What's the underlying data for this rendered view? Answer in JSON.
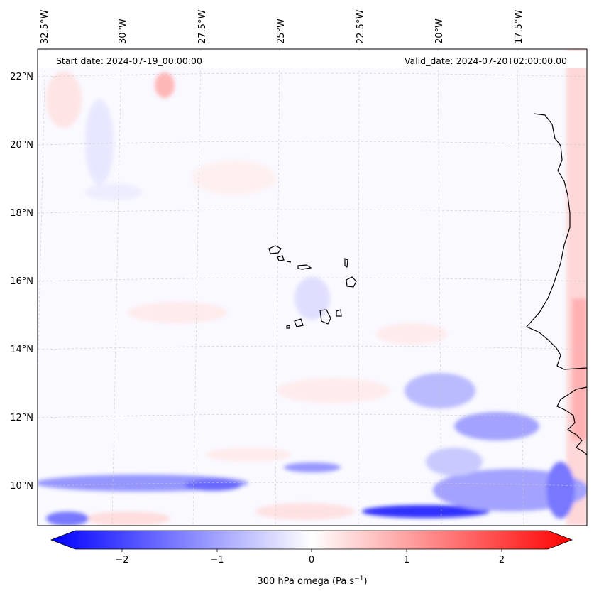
{
  "map": {
    "lon_labels": [
      "32.5°W",
      "30°W",
      "27.5°W",
      "25°W",
      "22.5°W",
      "20°W",
      "17.5°W"
    ],
    "lat_labels": [
      "22°N",
      "20°N",
      "18°N",
      "16°N",
      "14°N",
      "12°N",
      "10°N"
    ],
    "start_date": "Start date: 2024-07-19_00:00:00",
    "valid_date": "Valid_date: 2024-07-20T02:00:00.00"
  },
  "colorbar": {
    "ticks": [
      "−2",
      "−1",
      "0",
      "1",
      "2"
    ],
    "label_prefix": "300 hPa omega (Pa s",
    "label_exp": "−1",
    "label_suffix": ")",
    "colors": {
      "min": "#0000ff",
      "mid": "#ffffff",
      "max": "#ff0000"
    }
  }
}
